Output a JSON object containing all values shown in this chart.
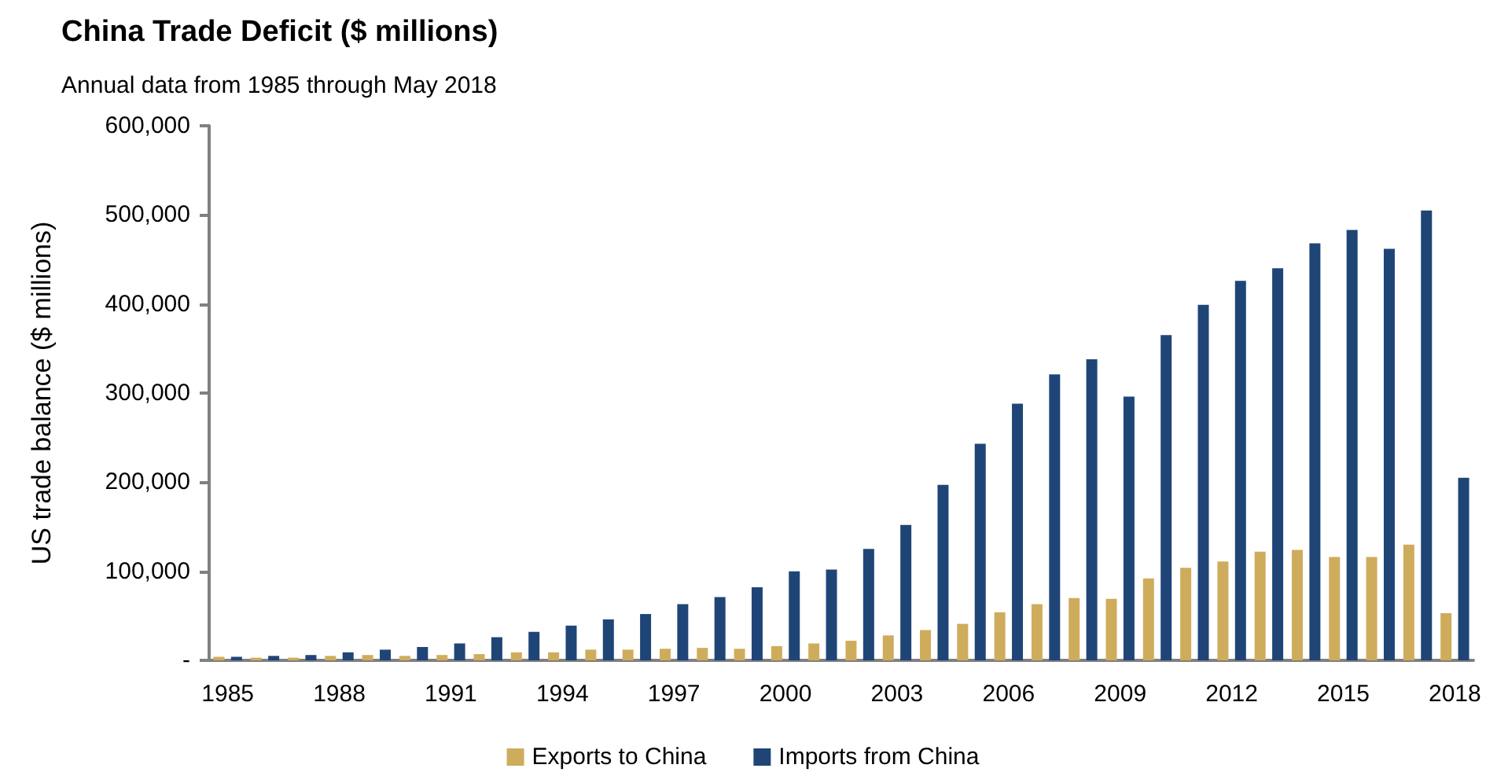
{
  "chart_data": {
    "type": "bar",
    "title": "China Trade Deficit ($ millions)",
    "subtitle": "Annual data from 1985 through May 2018",
    "ylabel": "US trade balance ($ millions)",
    "categories": [
      "1985",
      null,
      null,
      "1988",
      null,
      null,
      "1991",
      null,
      null,
      "1994",
      null,
      null,
      "1997",
      null,
      null,
      "2000",
      null,
      null,
      "2003",
      null,
      null,
      "2006",
      null,
      null,
      "2009",
      null,
      null,
      "2012",
      null,
      null,
      "2015",
      null,
      null,
      "2018"
    ],
    "series": [
      {
        "name": "Exports to China",
        "color": "#cfac5c",
        "values": [
          4000,
          3000,
          3000,
          5000,
          6000,
          5000,
          6000,
          7000,
          9000,
          9000,
          12000,
          12000,
          13000,
          14000,
          13000,
          16000,
          19000,
          22000,
          28000,
          34000,
          41000,
          54000,
          63000,
          70000,
          69000,
          92000,
          104000,
          111000,
          122000,
          124000,
          116000,
          116000,
          130000,
          53000
        ]
      },
      {
        "name": "Imports from China",
        "color": "#1f4577",
        "values": [
          4000,
          5000,
          6000,
          9000,
          12000,
          15000,
          19000,
          26000,
          32000,
          39000,
          46000,
          52000,
          63000,
          71000,
          82000,
          100000,
          102000,
          125000,
          152000,
          197000,
          243000,
          288000,
          321000,
          338000,
          296000,
          365000,
          399000,
          426000,
          440000,
          468000,
          483000,
          462000,
          505000,
          205000
        ]
      }
    ],
    "ylim": [
      0,
      600000
    ],
    "yticks": [
      {
        "value": 0,
        "label": "-"
      },
      {
        "value": 100000,
        "label": "100,000"
      },
      {
        "value": 200000,
        "label": "200,000"
      },
      {
        "value": 300000,
        "label": "300,000"
      },
      {
        "value": 400000,
        "label": "400,000"
      },
      {
        "value": 500000,
        "label": "500,000"
      },
      {
        "value": 600000,
        "label": "600,000"
      }
    ],
    "grid": false,
    "legend": "bottom"
  }
}
